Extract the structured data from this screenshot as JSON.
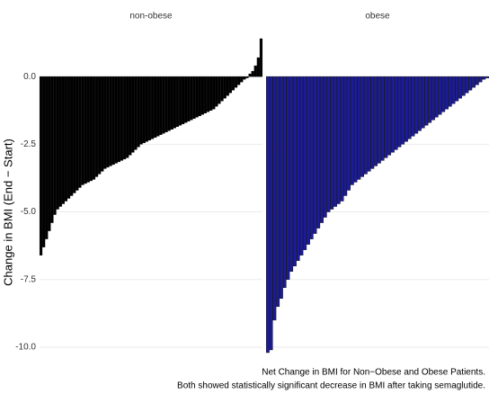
{
  "chart_data": [
    {
      "type": "bar",
      "title": "non-obese",
      "color": "#000000",
      "y_label": "Change in BMI (End − Start)",
      "ylim": [
        -10.3,
        1.5
      ],
      "yticks": [
        {
          "value": -10,
          "label": "-10.0"
        },
        -7.5,
        {
          "value": -5,
          "label": "-5.0"
        },
        -2.5,
        {
          "value": 0,
          "label": "0.0"
        }
      ],
      "grid": true,
      "values": [
        -6.6,
        -6.3,
        -6.0,
        -5.7,
        -5.4,
        -5.1,
        -4.9,
        -4.8,
        -4.7,
        -4.6,
        -4.5,
        -4.4,
        -4.3,
        -4.2,
        -4.1,
        -4.0,
        -3.95,
        -3.9,
        -3.85,
        -3.8,
        -3.7,
        -3.6,
        -3.5,
        -3.4,
        -3.35,
        -3.3,
        -3.25,
        -3.2,
        -3.15,
        -3.1,
        -3.05,
        -3.0,
        -2.9,
        -2.8,
        -2.7,
        -2.6,
        -2.5,
        -2.45,
        -2.4,
        -2.35,
        -2.3,
        -2.25,
        -2.2,
        -2.15,
        -2.1,
        -2.05,
        -2.0,
        -1.95,
        -1.9,
        -1.85,
        -1.8,
        -1.75,
        -1.7,
        -1.65,
        -1.6,
        -1.55,
        -1.5,
        -1.45,
        -1.4,
        -1.35,
        -1.3,
        -1.25,
        -1.2,
        -1.1,
        -1.0,
        -0.9,
        -0.8,
        -0.7,
        -0.6,
        -0.5,
        -0.4,
        -0.3,
        -0.2,
        -0.1,
        -0.05,
        0.1,
        0.2,
        0.4,
        0.7,
        1.4
      ]
    },
    {
      "type": "bar",
      "title": "obese",
      "color": "#1c1c96",
      "caption": [
        "Net Change in BMI for Non−Obese and Obese Patients.",
        "Both showed statistically significant decrease in BMI after taking semaglutide."
      ],
      "ylim": [
        -10.3,
        1.5
      ],
      "yticks": [
        {
          "value": -10,
          "label": "-10.0"
        },
        -7.5,
        {
          "value": -5,
          "label": "-5.0"
        },
        -2.5,
        {
          "value": 0,
          "label": "0.0"
        }
      ],
      "grid": true,
      "values": [
        -10.2,
        -10.1,
        -9.0,
        -8.5,
        -8.2,
        -7.8,
        -7.5,
        -7.2,
        -7.0,
        -6.8,
        -6.6,
        -6.4,
        -6.2,
        -6.0,
        -5.8,
        -5.6,
        -5.4,
        -5.2,
        -5.0,
        -4.9,
        -4.8,
        -4.7,
        -4.6,
        -4.4,
        -4.2,
        -4.0,
        -3.9,
        -3.8,
        -3.7,
        -3.6,
        -3.5,
        -3.4,
        -3.3,
        -3.2,
        -3.1,
        -3.0,
        -2.9,
        -2.8,
        -2.7,
        -2.6,
        -2.5,
        -2.4,
        -2.3,
        -2.2,
        -2.1,
        -2.0,
        -1.9,
        -1.8,
        -1.7,
        -1.6,
        -1.5,
        -1.4,
        -1.3,
        -1.2,
        -1.1,
        -1.0,
        -0.9,
        -0.8,
        -0.7,
        -0.6,
        -0.5,
        -0.4,
        -0.3,
        -0.2,
        -0.1,
        -0.05
      ]
    }
  ]
}
